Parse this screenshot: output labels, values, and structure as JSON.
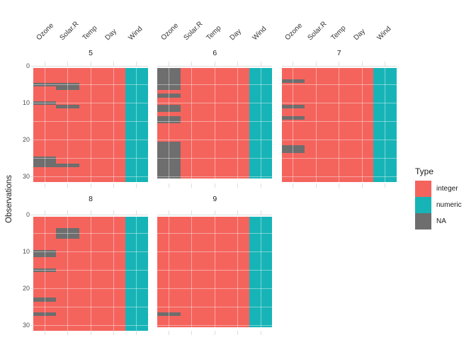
{
  "figure": {
    "y_axis_title": "Observations"
  },
  "legend": {
    "title": "Type",
    "items": [
      {
        "name": "integer",
        "label": "integer",
        "color": "#f4645d"
      },
      {
        "name": "numeric",
        "label": "numeric",
        "color": "#17b4b7"
      },
      {
        "name": "na",
        "label": "NA",
        "color": "#6e6e6e"
      }
    ]
  },
  "chart_data": {
    "type": "heatmap",
    "title": "",
    "xlabel": "",
    "ylabel": "Observations",
    "legend_title": "Type",
    "legend_position": "right",
    "grid": "light ticks outside panels, faint white gridlines over tiles",
    "columns": [
      "Ozone",
      "Solar.R",
      "Temp",
      "Day",
      "Wind"
    ],
    "column_types": {
      "Ozone": "integer",
      "Solar.R": "integer",
      "Temp": "integer",
      "Day": "integer",
      "Wind": "numeric"
    },
    "x_label_rotation_deg": -45,
    "y_ticks": [
      0,
      10,
      20,
      30
    ],
    "y_axis_reversed": true,
    "facets": [
      {
        "label": "5",
        "rows": 31,
        "grid_row": 0,
        "grid_col": 0,
        "na": {
          "Ozone": [
            [
              5,
              5
            ],
            [
              10,
              10
            ],
            [
              25,
              27
            ]
          ],
          "Solar.R": [
            [
              5,
              6
            ],
            [
              11,
              11
            ],
            [
              27,
              27
            ]
          ]
        }
      },
      {
        "label": "6",
        "rows": 30,
        "grid_row": 0,
        "grid_col": 1,
        "na": {
          "Ozone": [
            [
              1,
              6
            ],
            [
              8,
              8
            ],
            [
              11,
              12
            ],
            [
              14,
              15
            ],
            [
              21,
              30
            ]
          ]
        }
      },
      {
        "label": "7",
        "rows": 31,
        "grid_row": 0,
        "grid_col": 2,
        "na": {
          "Ozone": [
            [
              4,
              4
            ],
            [
              11,
              11
            ],
            [
              14,
              14
            ],
            [
              22,
              23
            ]
          ]
        }
      },
      {
        "label": "8",
        "rows": 31,
        "grid_row": 1,
        "grid_col": 0,
        "na": {
          "Ozone": [
            [
              10,
              11
            ],
            [
              15,
              15
            ],
            [
              23,
              23
            ],
            [
              27,
              27
            ]
          ],
          "Solar.R": [
            [
              4,
              6
            ]
          ]
        }
      },
      {
        "label": "9",
        "rows": 30,
        "grid_row": 1,
        "grid_col": 1,
        "na": {
          "Ozone": [
            [
              27,
              27
            ]
          ]
        }
      }
    ],
    "colors": {
      "integer": "#f4645d",
      "numeric": "#17b4b7",
      "na": "#6e6e6e"
    }
  }
}
